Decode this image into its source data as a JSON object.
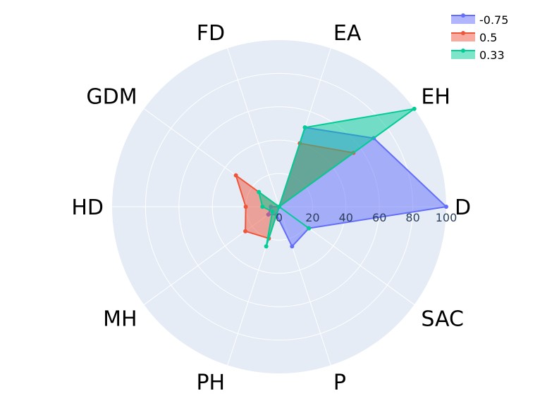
{
  "chart_data": {
    "type": "radar",
    "categories": [
      "D",
      "EH",
      "EA",
      "FD",
      "GDM",
      "HD",
      "MH",
      "PH",
      "P",
      "SAC"
    ],
    "radial_ticks": [
      "0",
      "20",
      "40",
      "60",
      "80",
      "100"
    ],
    "radial_range": [
      0,
      100
    ],
    "grid": true,
    "legend_position": "top-right",
    "series": [
      {
        "name": "-0.75",
        "color": "#636efa",
        "values": [
          100,
          70,
          50,
          0,
          0,
          5,
          8,
          5,
          25,
          22
        ]
      },
      {
        "name": "0.5",
        "color": "#ef553b",
        "values": [
          0,
          55,
          40,
          0,
          32,
          20,
          25,
          20,
          0,
          0
        ]
      },
      {
        "name": "0.33",
        "color": "#00cc96",
        "values": [
          0,
          100,
          50,
          0,
          15,
          10,
          5,
          25,
          0,
          22
        ]
      }
    ]
  }
}
